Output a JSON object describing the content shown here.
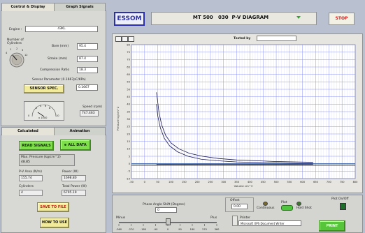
{
  "left_top": {
    "tabs": [
      {
        "label": "Control & Display"
      },
      {
        "label": "Graph Signals"
      }
    ],
    "engine_label": "Engine :",
    "engine_value": "43KL",
    "cylinders_label": "Number of\nCylinders",
    "knob_ticks": [
      "4",
      "1",
      "2",
      "3",
      "12"
    ],
    "bore_label": "Bore (mm)",
    "bore_value": "95.4",
    "stroke_label": "Stroke (mm)",
    "stroke_value": "87.4",
    "compression_label": "Compression Ratio",
    "compression_value": "18.3",
    "sensor_param_label": "Sensor Parameter (0.1667pC/KPa)",
    "sensor_spec_button": "SENSOR SPEC.",
    "sensor_value": "0.1667",
    "speed_gauge_ticks": [
      "2",
      "4",
      "6",
      "8",
      "0",
      "10"
    ],
    "speed_multiplier": "x 1000",
    "speed_label": "Speed (rpm)",
    "speed_value": "747.463"
  },
  "left_bottom": {
    "tabs": [
      {
        "label": "Calculated"
      },
      {
        "label": "Animation"
      }
    ],
    "read_signals_button": "READ SIGNALS",
    "all_data_button": "ALL DATA",
    "max_pressure_label": "Max. Pressure (kg/cm^2)",
    "max_pressure_value": "48.85",
    "pv_area_label": "P-V Area (N/m)",
    "pv_area_value": "155.74",
    "power_label": "Power (W)",
    "power_value": "1698.80",
    "cylinders_label": "Cylinders",
    "cylinders_value": "4",
    "total_power_label": "Total Power (W)",
    "total_power_value": "6795.19",
    "save_button": "SAVE TO FILE",
    "how_to_use_button": "HOW TO USE"
  },
  "header": {
    "logo": "ESSOM",
    "title": "MT 500   030  P-V DIAGRAM",
    "stop_button": "STOP"
  },
  "graph_toolbar": {
    "tested_by_label": "Tested by",
    "tested_by_value": ""
  },
  "chart_data": {
    "type": "line",
    "title": "",
    "xlabel": "Volume cm^3",
    "ylabel": "Pressure kg/cm^2",
    "xlim": [
      -50,
      800
    ],
    "ylim": [
      -10,
      80
    ],
    "x_ticks": [
      "-50",
      "0",
      "50",
      "100",
      "150",
      "200",
      "250",
      "300",
      "350",
      "400",
      "450",
      "500",
      "550",
      "600",
      "650",
      "700",
      "750",
      "800"
    ],
    "y_ticks": [
      "80",
      "75",
      "70",
      "65",
      "60",
      "55",
      "50",
      "45",
      "40",
      "35",
      "30",
      "25",
      "20",
      "15",
      "10",
      "5",
      "0",
      "-5",
      "-10"
    ],
    "grid": true,
    "series": [
      {
        "color": "#1a1a55",
        "points": [
          [
            45,
            48
          ],
          [
            48,
            44
          ],
          [
            55,
            34
          ],
          [
            65,
            26
          ],
          [
            80,
            19
          ],
          [
            100,
            14
          ],
          [
            130,
            10
          ],
          [
            170,
            7
          ],
          [
            220,
            5
          ],
          [
            280,
            3.5
          ],
          [
            350,
            2.5
          ],
          [
            420,
            2
          ],
          [
            500,
            1.5
          ],
          [
            580,
            1.2
          ],
          [
            640,
            1
          ]
        ]
      },
      {
        "color": "#1a1a55",
        "points": [
          [
            45,
            40
          ],
          [
            50,
            32
          ],
          [
            60,
            24
          ],
          [
            75,
            17
          ],
          [
            95,
            12
          ],
          [
            125,
            8
          ],
          [
            165,
            5
          ],
          [
            215,
            3
          ],
          [
            275,
            2
          ],
          [
            350,
            1.2
          ],
          [
            430,
            0.8
          ],
          [
            510,
            0.5
          ],
          [
            580,
            0.3
          ],
          [
            640,
            0.3
          ]
        ]
      },
      {
        "color": "#1a1a55",
        "points": [
          [
            45,
            -0.5
          ],
          [
            120,
            -0.4
          ],
          [
            220,
            -0.3
          ],
          [
            350,
            -0.3
          ],
          [
            480,
            -0.4
          ],
          [
            600,
            -0.5
          ],
          [
            640,
            -0.5
          ]
        ]
      }
    ],
    "reference_lines": [
      {
        "axis": "y",
        "value": 0,
        "color": "#2255aa"
      },
      {
        "axis": "y",
        "value": -1,
        "color": "#000000"
      }
    ]
  },
  "bottom": {
    "phase_label": "Phase Angle Shift (Degree)",
    "phase_value": "0",
    "minus_label": "Minus",
    "plus_label": "Plus",
    "slider_ticks": [
      "-360",
      "-270",
      "-180",
      "-90",
      "0",
      "90",
      "180",
      "270",
      "360"
    ],
    "slider_fraction": 0.5,
    "offset_label": "Offset",
    "offset_value": "0.00",
    "continuous_label": "Continuous",
    "plot_label": "Plot",
    "hold_shot_label": "Hold Shot",
    "plot_onoff_label": "Plot On/Off",
    "printer_label": "Printer",
    "printer_value": "Microsoft XPS Document Writer",
    "print_button": "PRINT"
  },
  "colors": {
    "background": "#b9c0cf",
    "graph_bg": "#ffffff",
    "grid": "#7f86f5",
    "logo": "#2b2fb0",
    "stop": "#d01c1c",
    "green_button": "#7fdf4a",
    "yellow_button": "#f2eb9c"
  }
}
